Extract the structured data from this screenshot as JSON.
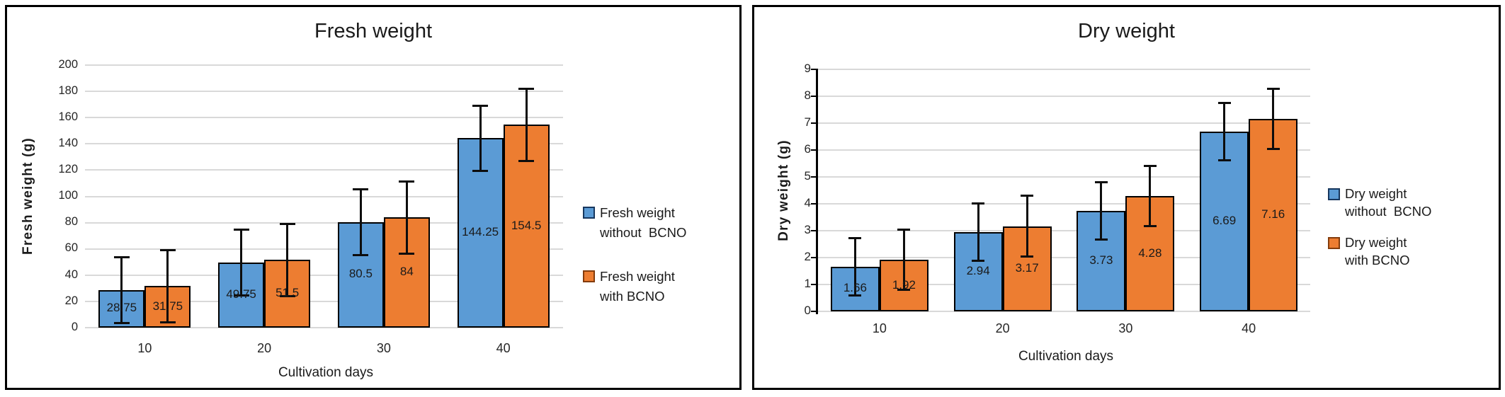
{
  "page_background": "#ffffff",
  "panel_border_color": "#000000",
  "gridline_color": "#d9d9d9",
  "chart_data": [
    {
      "type": "bar",
      "title": "Fresh weight",
      "xlabel": "Cultivation days",
      "ylabel": "Fresh weight (g)",
      "categories": [
        "10",
        "20",
        "30",
        "40"
      ],
      "ylim": [
        0,
        200
      ],
      "ytick_step": 20,
      "grid": true,
      "legend_position": "right",
      "bar_border_color": "#000000",
      "error_bar_color": "#0d0d0d",
      "series": [
        {
          "name": "Fresh weight without BCNO",
          "legend_lines": [
            "Fresh weight",
            "without  BCNO"
          ],
          "color": "#5B9BD5",
          "legend_border_color": "#17375E",
          "values": [
            28.75,
            49.75,
            80.5,
            144.25
          ],
          "data_labels": [
            "28.75",
            "49.75",
            "80.5",
            "144.25"
          ],
          "error_bar": 25
        },
        {
          "name": "Fresh weight with BCNO",
          "legend_lines": [
            "Fresh weight",
            "with BCNO"
          ],
          "color": "#ED7D31",
          "legend_border_color": "#843C0C",
          "values": [
            31.75,
            51.5,
            84,
            154.5
          ],
          "data_labels": [
            "31.75",
            "51.5",
            "84",
            "154.5"
          ],
          "error_bar": 27.5
        }
      ]
    },
    {
      "type": "bar",
      "title": "Dry weight",
      "xlabel": "Cultivation days",
      "ylabel": "Dry weight (g)",
      "categories": [
        "10",
        "20",
        "30",
        "40"
      ],
      "ylim": [
        0,
        9
      ],
      "ytick_step": 1,
      "grid": true,
      "legend_position": "right",
      "bar_border_color": "#000000",
      "error_bar_color": "#0d0d0d",
      "series": [
        {
          "name": "Dry weight without BCNO",
          "legend_lines": [
            "Dry weight",
            "without  BCNO"
          ],
          "color": "#5B9BD5",
          "legend_border_color": "#17375E",
          "values": [
            1.66,
            2.94,
            3.73,
            6.69
          ],
          "data_labels": [
            "1.66",
            "2.94",
            "3.73",
            "6.69"
          ],
          "error_bar": 1.07
        },
        {
          "name": "Dry weight with BCNO",
          "legend_lines": [
            "Dry weight",
            "with BCNO"
          ],
          "color": "#ED7D31",
          "legend_border_color": "#843C0C",
          "values": [
            1.92,
            3.17,
            4.28,
            7.16
          ],
          "data_labels": [
            "1.92",
            "3.17",
            "4.28",
            "7.16"
          ],
          "error_bar": 1.12
        }
      ]
    }
  ]
}
